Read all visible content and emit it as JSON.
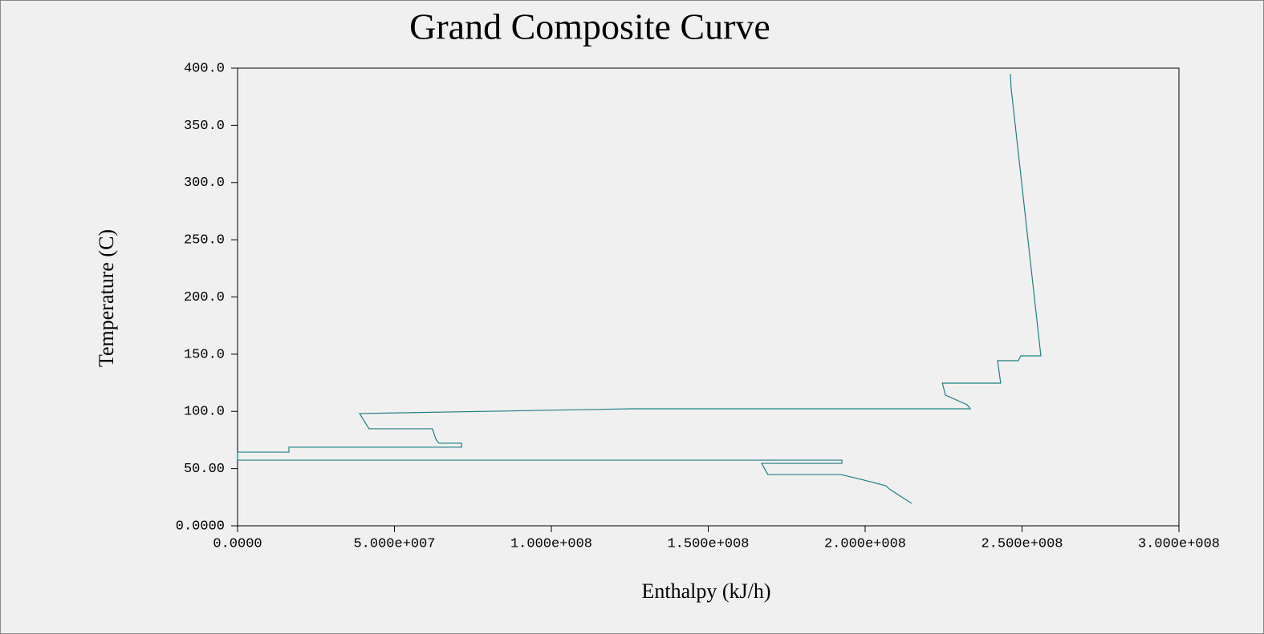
{
  "chart_data": {
    "type": "line",
    "title": "Grand Composite Curve",
    "x_label": "Enthalpy (kJ/h)",
    "y_label": "Temperature (C)",
    "xlim": [
      0,
      300000000
    ],
    "ylim": [
      0,
      400
    ],
    "xticks": [
      {
        "value": 0,
        "label": "0.0000"
      },
      {
        "value": 50000000,
        "label": "5.000e+007"
      },
      {
        "value": 100000000,
        "label": "1.000e+008"
      },
      {
        "value": 150000000,
        "label": "1.500e+008"
      },
      {
        "value": 200000000,
        "label": "2.000e+008"
      },
      {
        "value": 250000000,
        "label": "2.500e+008"
      },
      {
        "value": 300000000,
        "label": "3.000e+008"
      }
    ],
    "yticks": [
      {
        "value": 0,
        "label": "0.0000"
      },
      {
        "value": 50,
        "label": "50.00"
      },
      {
        "value": 100,
        "label": "100.0"
      },
      {
        "value": 150,
        "label": "150.0"
      },
      {
        "value": 200,
        "label": "200.0"
      },
      {
        "value": 250,
        "label": "250.0"
      },
      {
        "value": 300,
        "label": "300.0"
      },
      {
        "value": 350,
        "label": "350.0"
      },
      {
        "value": 400,
        "label": "400.0"
      }
    ],
    "series": [
      {
        "color": "#1f7f86",
        "x": [
          214800000,
          207700000,
          206600000,
          199700000,
          192300000,
          169000000,
          167000000,
          192600000,
          192600000,
          0,
          0,
          16370000,
          16370000,
          71400000,
          71400000,
          64200000,
          63200000,
          62100000,
          41900000,
          38900000,
          126300000,
          233500000,
          232500000,
          225600000,
          224600000,
          243200000,
          242200000,
          248800000,
          249600000,
          256000000,
          246500000,
          246300000
        ],
        "values": [
          19.6,
          32.2,
          35,
          39.9,
          44.8,
          44.8,
          54.6,
          54.6,
          57.4,
          57.4,
          64.4,
          64.4,
          68.7,
          68.7,
          72.2,
          72.2,
          75.7,
          84.8,
          84.8,
          98.1,
          102.3,
          102.3,
          105.8,
          114.2,
          124.7,
          124.7,
          144.3,
          144.3,
          148.5,
          148.5,
          383.2,
          395.1
        ]
      }
    ]
  }
}
